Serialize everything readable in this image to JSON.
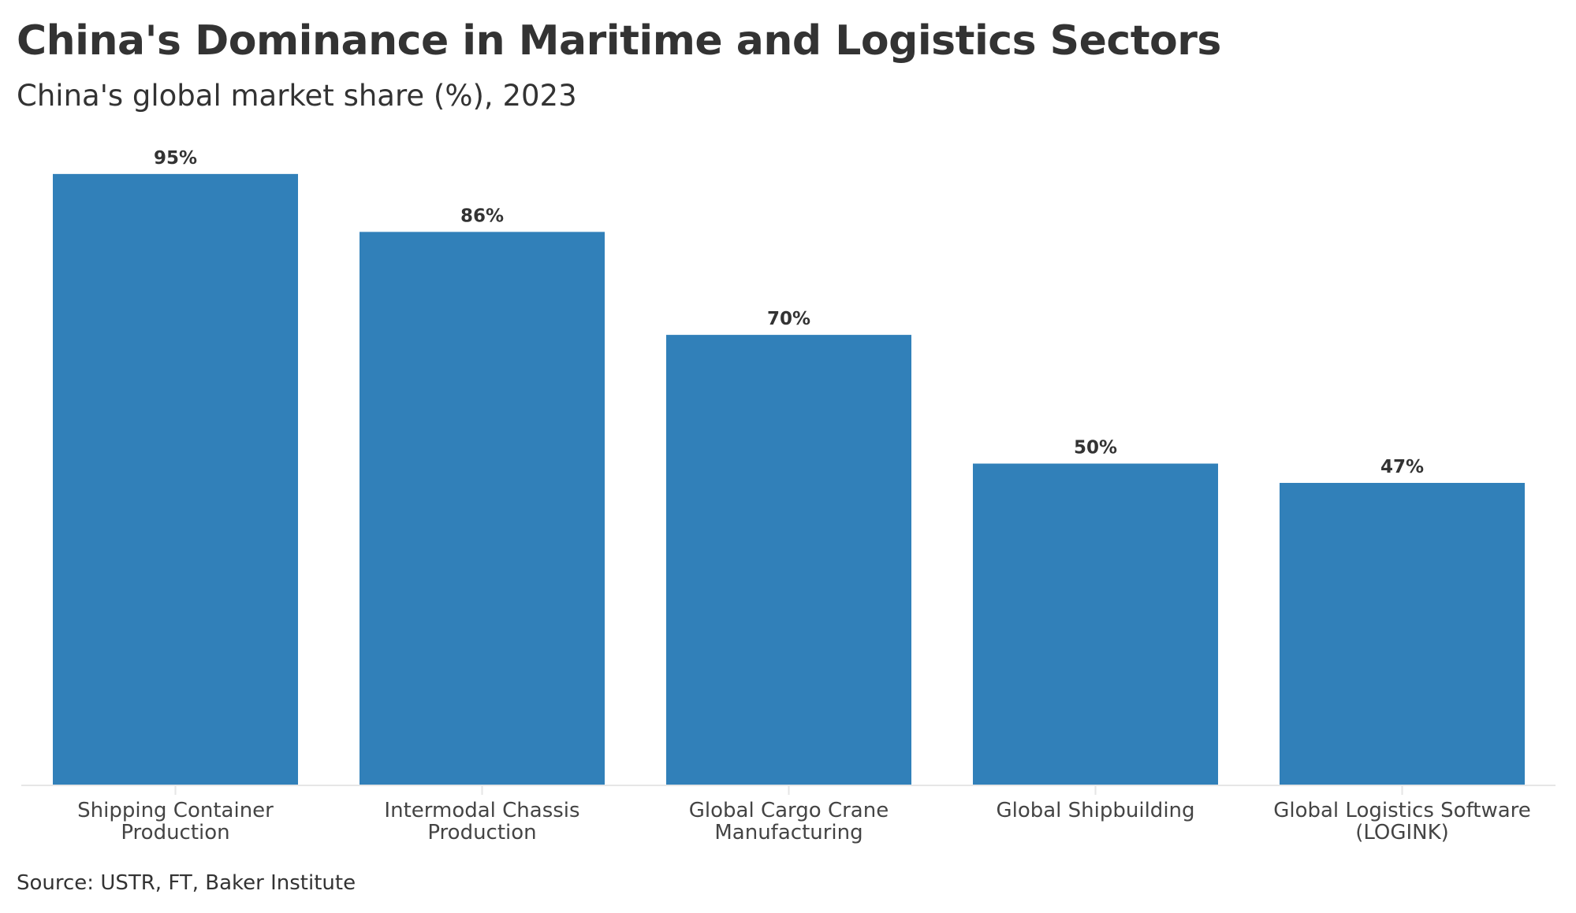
{
  "chart_data": {
    "type": "bar",
    "title": "China's Dominance in Maritime and Logistics Sectors",
    "subtitle": "China's global market share (%), 2023",
    "source": "Source: USTR, FT, Baker Institute",
    "xlabel": "",
    "ylabel": "",
    "ylim": [
      0,
      100
    ],
    "grid": false,
    "legend": "none",
    "value_suffix": "%",
    "bar_color": "#3180b9",
    "categories": [
      [
        "Shipping Container",
        "Production"
      ],
      [
        "Intermodal Chassis",
        "Production"
      ],
      [
        "Global Cargo Crane",
        "Manufacturing"
      ],
      [
        "Global Shipbuilding"
      ],
      [
        "Global Logistics Software",
        "(LOGINK)"
      ]
    ],
    "values": [
      95,
      86,
      70,
      50,
      47
    ]
  }
}
